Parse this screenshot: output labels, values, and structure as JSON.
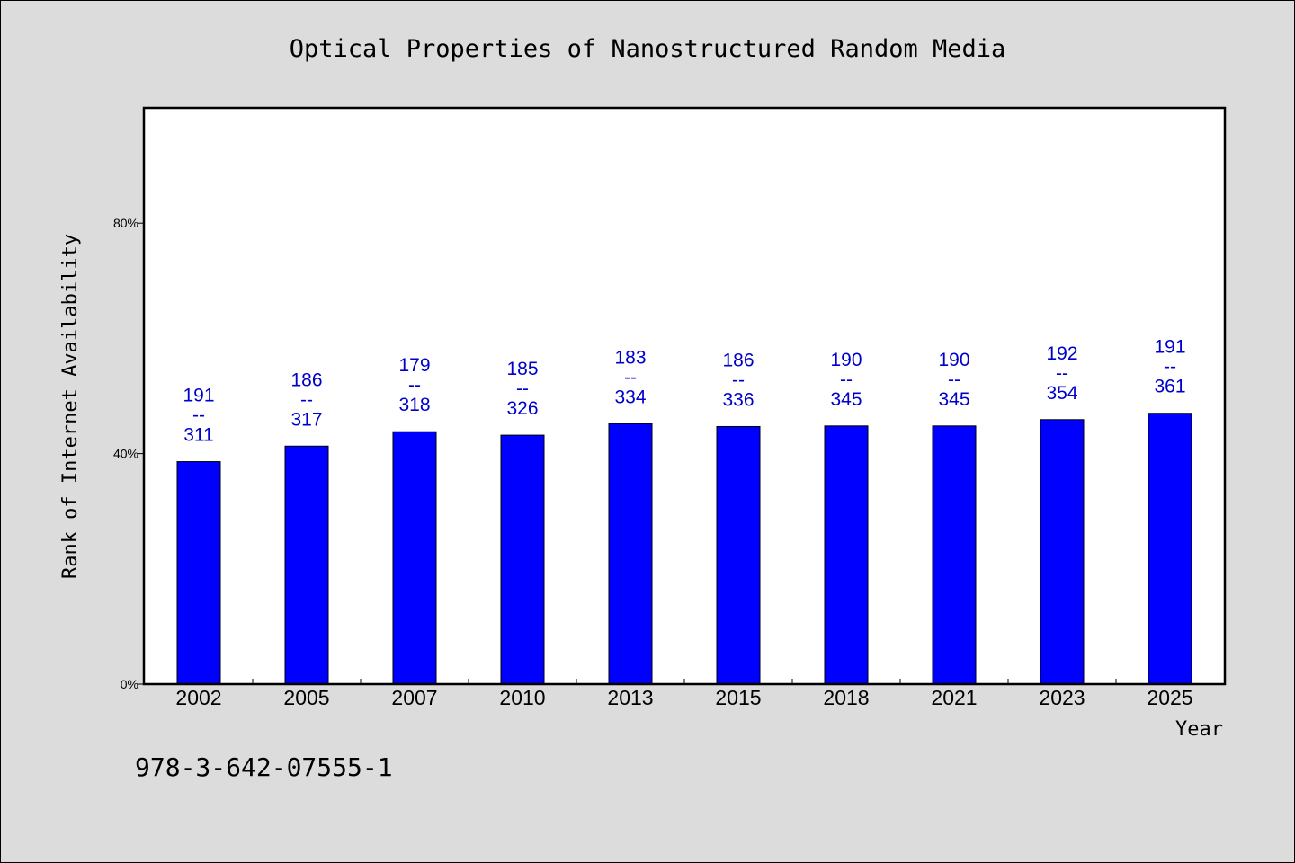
{
  "chart_data": {
    "type": "bar",
    "title": "Optical Properties of Nanostructured Random Media",
    "xlabel": "Year",
    "ylabel": "Rank of Internet Availability",
    "categories": [
      "2002",
      "2005",
      "2007",
      "2010",
      "2013",
      "2015",
      "2018",
      "2021",
      "2023",
      "2025"
    ],
    "values": [
      38.6,
      41.3,
      43.8,
      43.2,
      45.2,
      44.7,
      44.8,
      44.8,
      45.9,
      47.0
    ],
    "labels_top": [
      "191",
      "186",
      "179",
      "185",
      "183",
      "186",
      "190",
      "190",
      "192",
      "191"
    ],
    "labels_sep": "--",
    "labels_bottom": [
      "311",
      "317",
      "318",
      "326",
      "334",
      "336",
      "345",
      "345",
      "354",
      "361"
    ],
    "ylim": [
      0,
      100
    ],
    "yticks": [
      0,
      40,
      80
    ],
    "ytick_labels": [
      "0%",
      "40%",
      "80%"
    ],
    "bar_color": "#0000ff",
    "label_color": "#0000cc",
    "grid": false,
    "legend": "none"
  },
  "footer": {
    "isbn": "978-3-642-07555-1"
  }
}
